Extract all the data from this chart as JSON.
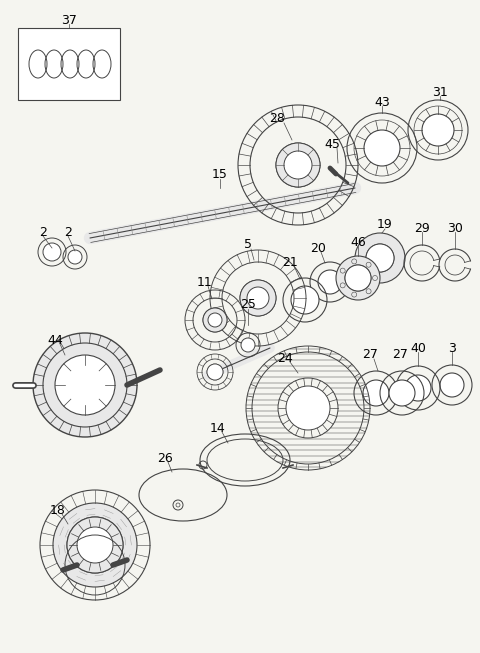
{
  "bg_color": "#f5f5f0",
  "line_color": "#444444",
  "fig_width": 4.8,
  "fig_height": 6.53,
  "dpi": 100,
  "gray_fill": "#c8c8c8",
  "light_gray": "#e8e8e8",
  "dark_gray": "#888888"
}
